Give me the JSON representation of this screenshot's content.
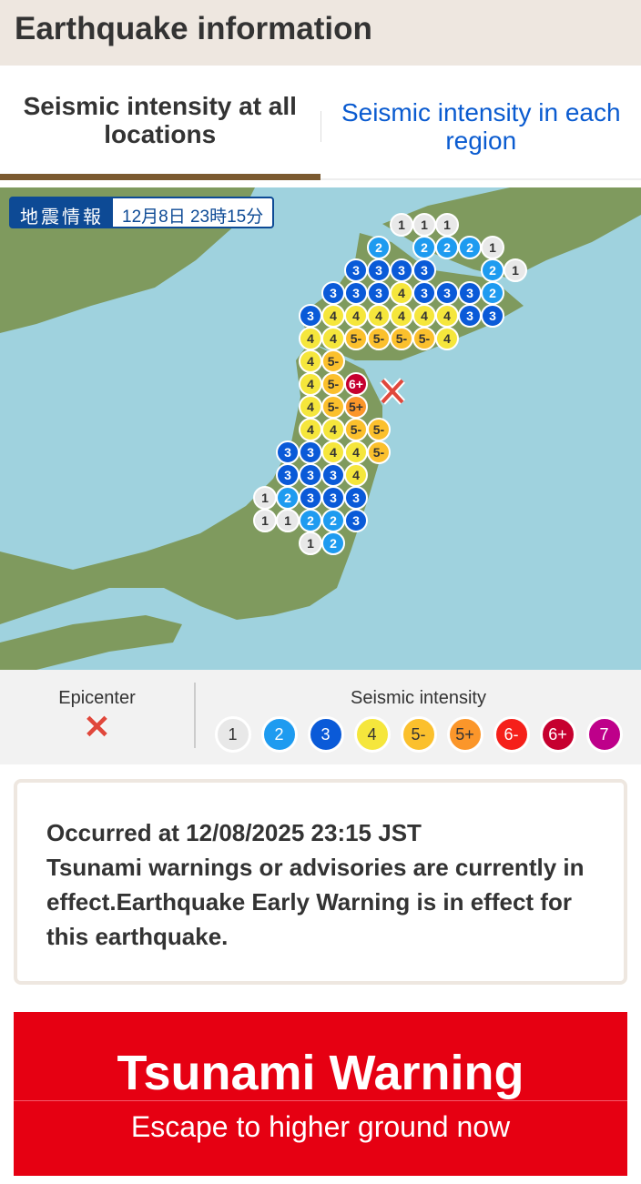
{
  "header": {
    "title": "Earthquake information"
  },
  "tabs": [
    {
      "label": "Seismic intensity at all locations",
      "active": true
    },
    {
      "label": "Seismic intensity in each region",
      "active": false
    }
  ],
  "map": {
    "badge_label": "地震情報",
    "badge_time": "12月8日 23時15分",
    "epicenter_icon": "x-mark-icon",
    "colors": {
      "sea": "#9fd2de",
      "land": "#7f9a5e"
    },
    "markers": [
      "2",
      "2",
      "3",
      "3",
      "3",
      "3",
      "3",
      "4",
      "4",
      "3",
      "4",
      "3",
      "3",
      "3",
      "4",
      "4",
      "3",
      "3",
      "5-",
      "5-",
      "5-",
      "5-",
      "5-",
      "4",
      "4",
      "3",
      "2",
      "3",
      "4",
      "4",
      "5-",
      "5+",
      "5-",
      "6+",
      "4",
      "5-",
      "4",
      "4",
      "4",
      "5-",
      "4",
      "4",
      "4",
      "5-",
      "2",
      "3",
      "3",
      "3",
      "4",
      "2",
      "2",
      "2",
      "3",
      "4",
      "2",
      "2",
      "3",
      "3",
      "3",
      "3",
      "3",
      "2",
      "1",
      "1",
      "1",
      "1",
      "1",
      "1",
      "1",
      "1",
      "1"
    ]
  },
  "legend": {
    "epicenter_label": "Epicenter",
    "intensity_label": "Seismic intensity",
    "levels": [
      {
        "label": "1",
        "color": "#e8e8e8",
        "text": "#333"
      },
      {
        "label": "2",
        "color": "#1e9bf0",
        "text": "#fff"
      },
      {
        "label": "3",
        "color": "#0a5ad8",
        "text": "#fff"
      },
      {
        "label": "4",
        "color": "#f5e63c",
        "text": "#333"
      },
      {
        "label": "5-",
        "color": "#fbc02d",
        "text": "#333"
      },
      {
        "label": "5+",
        "color": "#fb962a",
        "text": "#333"
      },
      {
        "label": "6-",
        "color": "#f5201a",
        "text": "#fff"
      },
      {
        "label": "6+",
        "color": "#c6002f",
        "text": "#fff"
      },
      {
        "label": "7",
        "color": "#be008a",
        "text": "#fff"
      }
    ]
  },
  "info": {
    "occurred": "Occurred at 12/08/2025 23:15 JST",
    "message": "Tsunami warnings or advisories are currently in effect.Earthquake Early Warning is in effect for this earthquake."
  },
  "tsunami": {
    "title": "Tsunami Warning",
    "subtitle": "Escape to higher ground now"
  }
}
